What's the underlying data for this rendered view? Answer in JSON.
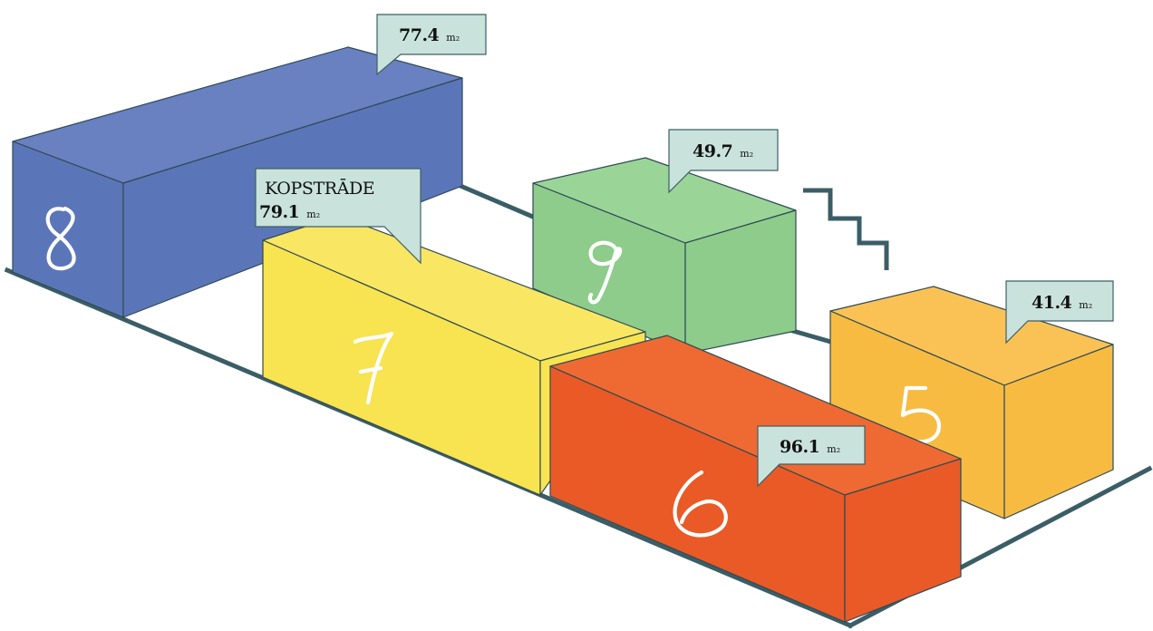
{
  "rooms": [
    {
      "number": "8",
      "area": "77.4",
      "unit": "m₂",
      "name": "",
      "color": "#5b76b8"
    },
    {
      "number": "7",
      "area": "79.1",
      "unit": "m₂",
      "name": "KOPSTRĀDE",
      "color": "#f8e350"
    },
    {
      "number": "9",
      "area": "49.7",
      "unit": "m₂",
      "name": "",
      "color": "#8dcc8a"
    },
    {
      "number": "5",
      "area": "41.4",
      "unit": "m₂",
      "name": "",
      "color": "#f8bb42"
    },
    {
      "number": "6",
      "area": "96.1",
      "unit": "m₂",
      "name": "",
      "color": "#e95a27"
    }
  ],
  "colors": {
    "floor": "#3b5e66",
    "callout": "#c9e3dc",
    "stroke": "#2f4a55"
  }
}
